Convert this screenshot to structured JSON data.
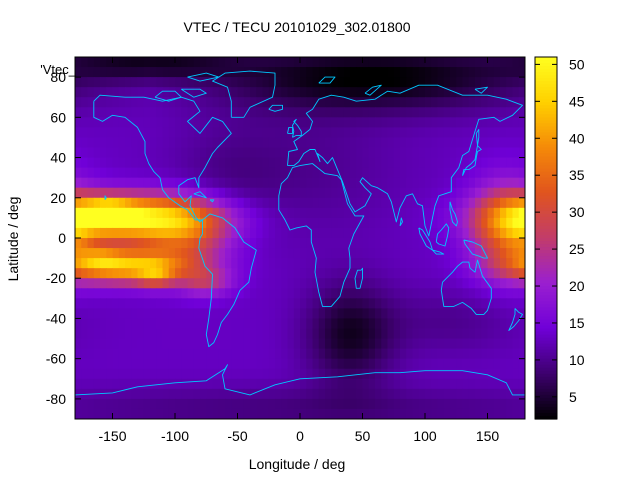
{
  "chart_data": {
    "type": "heatmap",
    "title": "VTEC / TECU 20101029_302.01800",
    "xlabel": "Longitude / deg",
    "ylabel": "Latitude / deg",
    "key_label": "'Vtec_",
    "xlim": [
      -180,
      180
    ],
    "ylim": [
      -90,
      90
    ],
    "x_ticks": [
      -150,
      -100,
      -50,
      0,
      50,
      100,
      150
    ],
    "y_ticks": [
      -80,
      -60,
      -40,
      -20,
      0,
      20,
      40,
      60,
      80
    ],
    "colorbar": {
      "range": [
        2,
        51
      ],
      "ticks": [
        5,
        10,
        15,
        20,
        25,
        30,
        35,
        40,
        45,
        50
      ],
      "palette": [
        "#000000",
        "#3d006e",
        "#7000d8",
        "#9a1fd0",
        "#c23c6a",
        "#e0541e",
        "#f58a08",
        "#ffd000",
        "#ffff20"
      ]
    },
    "grid": false,
    "overlay": "coastlines",
    "overlay_color": "#00c8ff",
    "background_level": 13,
    "features": [
      {
        "lon": -135,
        "lat": 10,
        "sx": 45,
        "sy": 8,
        "value": 35
      },
      {
        "lon": -155,
        "lat": 12,
        "sx": 15,
        "sy": 5,
        "value": 18
      },
      {
        "lon": -140,
        "lat": -14,
        "sx": 35,
        "sy": 6,
        "value": 30
      },
      {
        "lon": -115,
        "lat": -19,
        "sx": 10,
        "sy": 4,
        "value": 10
      },
      {
        "lon": -160,
        "lat": -10,
        "sx": 12,
        "sy": 4,
        "value": 8
      },
      {
        "lon": -90,
        "lat": 0,
        "sx": 25,
        "sy": 12,
        "value": 14
      },
      {
        "lon": -75,
        "lat": -22,
        "sx": 15,
        "sy": 5,
        "value": 10
      },
      {
        "lon": 165,
        "lat": 5,
        "sx": 20,
        "sy": 16,
        "value": 18
      },
      {
        "lon": 180,
        "lat": 0,
        "sx": 10,
        "sy": 10,
        "value": 5
      },
      {
        "lon": 60,
        "lat": 80,
        "sx": 90,
        "sy": 12,
        "value": -11
      },
      {
        "lon": -120,
        "lat": 87,
        "sx": 50,
        "sy": 6,
        "value": -8
      },
      {
        "lon": 0,
        "lat": 35,
        "sx": 60,
        "sy": 25,
        "value": -3
      },
      {
        "lon": 40,
        "lat": -48,
        "sx": 25,
        "sy": 18,
        "value": -9
      },
      {
        "lon": 120,
        "lat": -42,
        "sx": 40,
        "sy": 12,
        "value": -3
      },
      {
        "lon": -60,
        "lat": 30,
        "sx": 30,
        "sy": 18,
        "value": -2
      },
      {
        "lon": 0,
        "lat": -85,
        "sx": 180,
        "sy": 8,
        "value": -4
      }
    ]
  }
}
